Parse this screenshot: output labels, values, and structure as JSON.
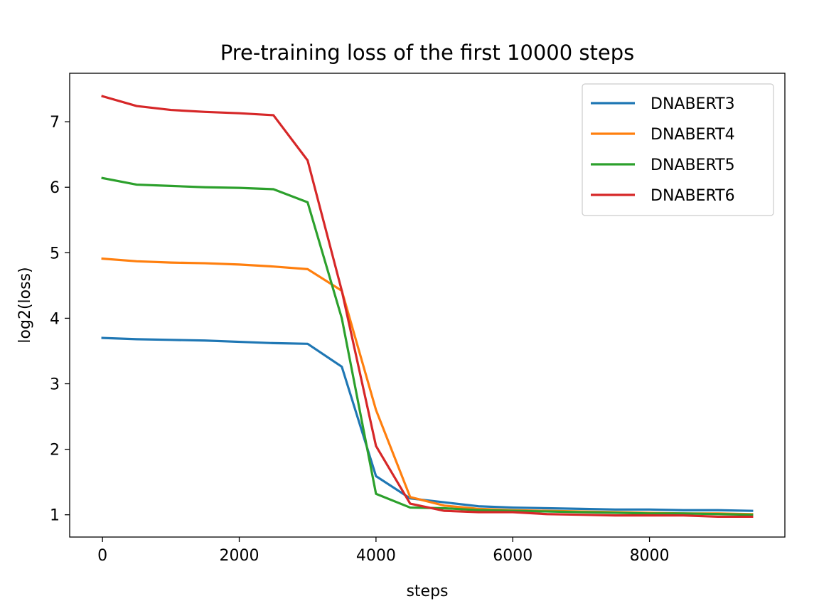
{
  "chart_data": {
    "type": "line",
    "title": "Pre-training loss of the first 10000 steps",
    "xlabel": "steps",
    "ylabel": "log2(loss)",
    "xlim": [
      -480,
      9980
    ],
    "ylim": [
      0.66,
      7.74
    ],
    "xticks": [
      0,
      2000,
      4000,
      6000,
      8000
    ],
    "yticks": [
      1,
      2,
      3,
      4,
      5,
      6,
      7
    ],
    "grid": false,
    "legend_position": "top-right",
    "x": [
      0,
      500,
      1000,
      1500,
      2000,
      2500,
      3000,
      3500,
      4000,
      4500,
      5000,
      5500,
      6000,
      6500,
      7000,
      7500,
      8000,
      8500,
      9000,
      9500
    ],
    "series": [
      {
        "name": "DNABERT3",
        "color": "#1f77b4",
        "values": [
          3.7,
          3.68,
          3.67,
          3.66,
          3.64,
          3.62,
          3.61,
          3.26,
          1.59,
          1.25,
          1.19,
          1.13,
          1.11,
          1.1,
          1.09,
          1.08,
          1.08,
          1.07,
          1.07,
          1.06
        ]
      },
      {
        "name": "DNABERT4",
        "color": "#ff7f0e",
        "values": [
          4.91,
          4.87,
          4.85,
          4.84,
          4.82,
          4.79,
          4.75,
          4.42,
          2.6,
          1.27,
          1.14,
          1.09,
          1.07,
          1.06,
          1.05,
          1.04,
          1.03,
          1.02,
          1.02,
          1.01
        ]
      },
      {
        "name": "DNABERT5",
        "color": "#2ca02c",
        "values": [
          6.14,
          6.04,
          6.02,
          6.0,
          5.99,
          5.97,
          5.77,
          4.0,
          1.32,
          1.11,
          1.1,
          1.07,
          1.06,
          1.05,
          1.04,
          1.03,
          1.02,
          1.02,
          1.01,
          1.0
        ]
      },
      {
        "name": "DNABERT6",
        "color": "#d62728",
        "values": [
          7.39,
          7.24,
          7.18,
          7.15,
          7.13,
          7.1,
          6.41,
          4.42,
          2.05,
          1.17,
          1.06,
          1.04,
          1.04,
          1.01,
          1.0,
          0.99,
          0.99,
          0.99,
          0.97,
          0.97
        ]
      }
    ]
  }
}
